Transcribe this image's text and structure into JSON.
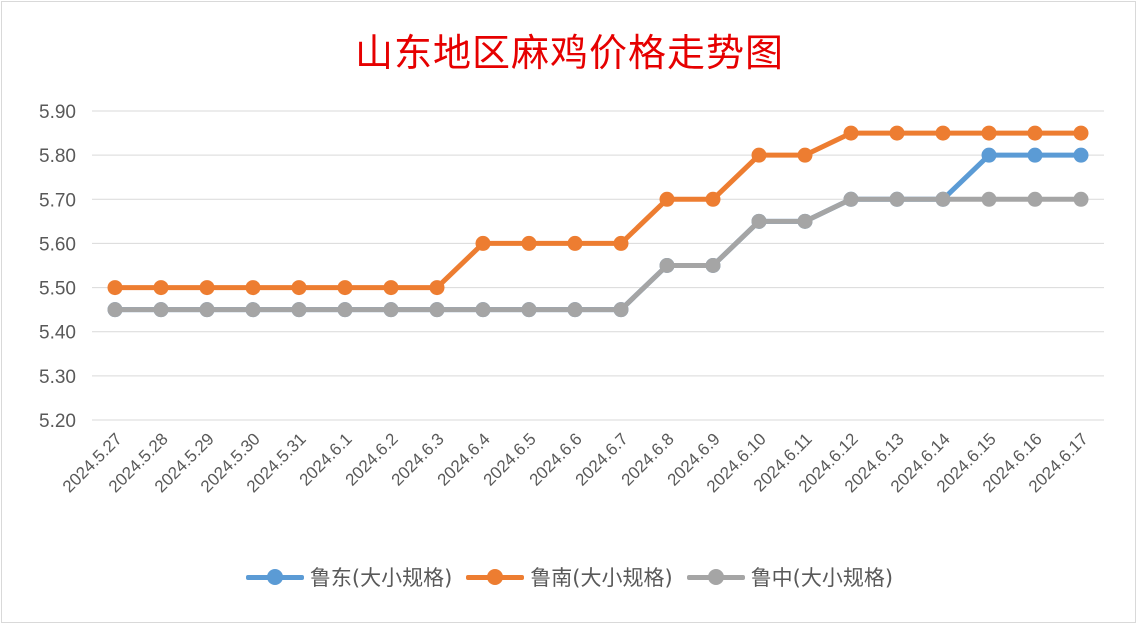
{
  "chart_data": {
    "type": "line",
    "title": "山东地区麻鸡价格走势图",
    "categories": [
      "2024.5.27",
      "2024.5.28",
      "2024.5.29",
      "2024.5.30",
      "2024.5.31",
      "2024.6.1",
      "2024.6.2",
      "2024.6.3",
      "2024.6.4",
      "2024.6.5",
      "2024.6.6",
      "2024.6.7",
      "2024.6.8",
      "2024.6.9",
      "2024.6.10",
      "2024.6.11",
      "2024.6.12",
      "2024.6.13",
      "2024.6.14",
      "2024.6.15",
      "2024.6.16",
      "2024.6.17"
    ],
    "series": [
      {
        "name": "鲁东(大小规格)",
        "color": "#5b9bd5",
        "values": [
          5.45,
          5.45,
          5.45,
          5.45,
          5.45,
          5.45,
          5.45,
          5.45,
          5.45,
          5.45,
          5.45,
          5.45,
          5.55,
          5.55,
          5.65,
          5.65,
          5.7,
          5.7,
          5.7,
          5.8,
          5.8,
          5.8
        ]
      },
      {
        "name": "鲁南(大小规格)",
        "color": "#ed7d31",
        "values": [
          5.5,
          5.5,
          5.5,
          5.5,
          5.5,
          5.5,
          5.5,
          5.5,
          5.6,
          5.6,
          5.6,
          5.6,
          5.7,
          5.7,
          5.8,
          5.8,
          5.85,
          5.85,
          5.85,
          5.85,
          5.85,
          5.85
        ]
      },
      {
        "name": "鲁中(大小规格)",
        "color": "#a5a5a5",
        "values": [
          5.45,
          5.45,
          5.45,
          5.45,
          5.45,
          5.45,
          5.45,
          5.45,
          5.45,
          5.45,
          5.45,
          5.45,
          5.55,
          5.55,
          5.65,
          5.65,
          5.7,
          5.7,
          5.7,
          5.7,
          5.7,
          5.7
        ]
      }
    ],
    "yticks": [
      "5.20",
      "5.30",
      "5.40",
      "5.50",
      "5.60",
      "5.70",
      "5.80",
      "5.90"
    ],
    "ylim": [
      5.2,
      5.9
    ],
    "grid": true,
    "legend": "bottom"
  }
}
